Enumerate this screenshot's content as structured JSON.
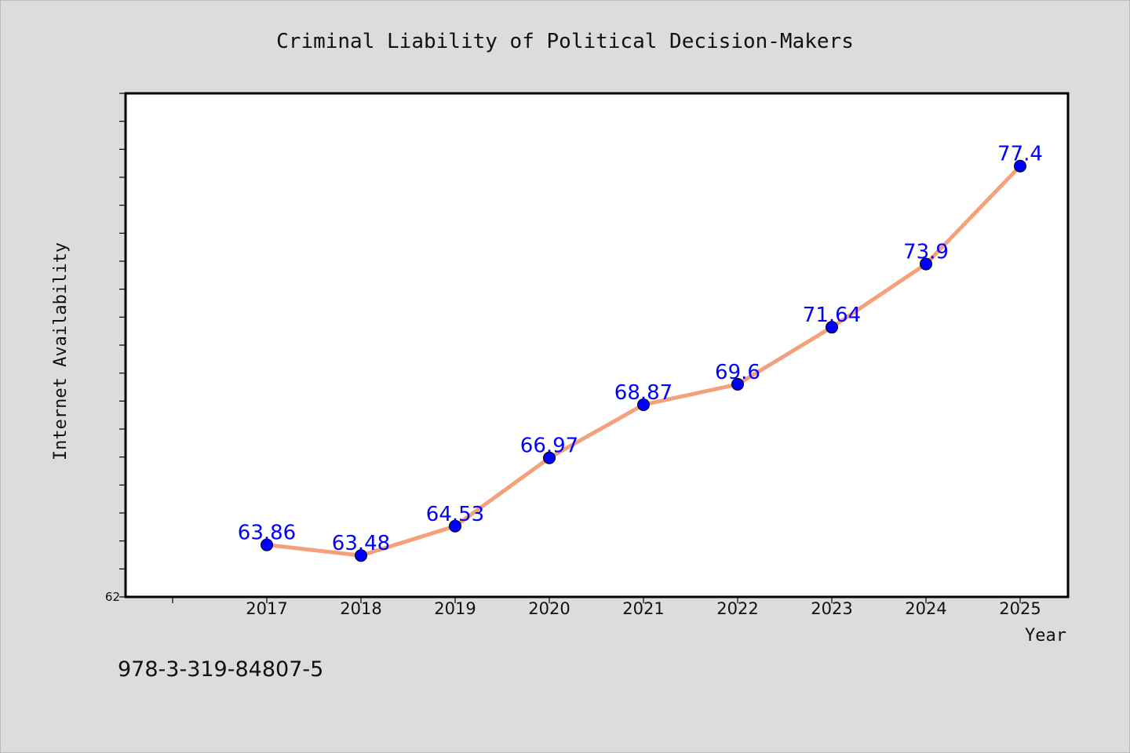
{
  "chart_data": {
    "type": "line",
    "title": "Criminal Liability of Political Decision-Makers",
    "xlabel": "Year",
    "ylabel": "Internet Availability",
    "x": [
      "2017",
      "2018",
      "2019",
      "2020",
      "2021",
      "2022",
      "2023",
      "2024",
      "2025"
    ],
    "series": [
      {
        "values": [
          63.86,
          63.48,
          64.53,
          66.97,
          68.87,
          69.6,
          71.64,
          73.9,
          77.4
        ],
        "data_labels": [
          "63.86",
          "63.48",
          "64.53",
          "66.97",
          "68.87",
          "69.6",
          "71.64",
          "73.9",
          "77.4"
        ]
      }
    ],
    "ylim": [
      62,
      80
    ],
    "y_tick_labels": [
      "62"
    ],
    "grid": false,
    "legend": "none",
    "colors": {
      "line": "#f4a07a",
      "marker": "#0000ff",
      "marker_edge": "#000000",
      "data_label": "#0000ff",
      "background": "#dcdcdc",
      "plot_background": "#ffffff"
    }
  },
  "footer": {
    "text": "978-3-319-84807-5"
  }
}
